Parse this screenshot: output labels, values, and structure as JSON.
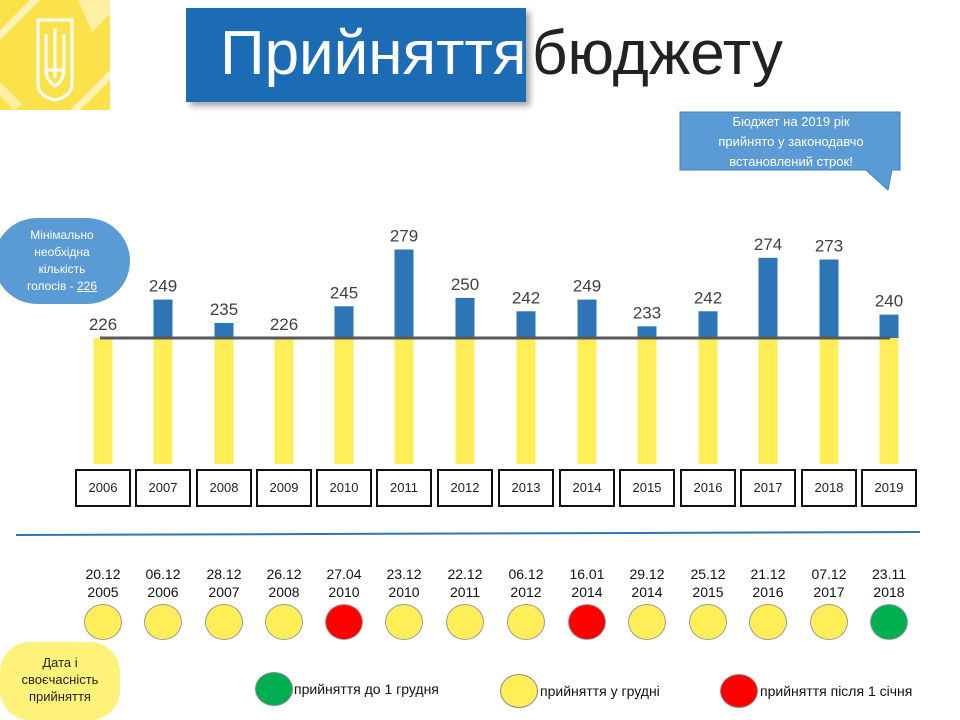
{
  "header": {
    "title_highlight": "Прийняття",
    "title_rest": "бюджету"
  },
  "callout": {
    "lines": [
      "Бюджет на 2019 рік",
      "прийнято у законодавчо",
      "встановлений строк!"
    ]
  },
  "min_votes": {
    "lines": [
      "Мінімально",
      "необхідна",
      "кількість"
    ],
    "last_prefix": "голосів - ",
    "value_label": "226"
  },
  "legend": {
    "bubble_lines": [
      "Дата і",
      "своєчасність",
      "прийняття"
    ],
    "items": [
      {
        "label": "прийняття до 1 грудня",
        "color": "#00b050"
      },
      {
        "label": "прийняття у грудні",
        "color": "#ffee58"
      },
      {
        "label": "прийняття після 1 січня",
        "color": "#ff0000"
      }
    ]
  },
  "colors": {
    "bar_blue": "#2e75b6",
    "bar_yellow": "#ffee58",
    "threshold_line": "#595959",
    "separator": "#2e75b6"
  },
  "chart_data": {
    "type": "bar",
    "categories": [
      "2006",
      "2007",
      "2008",
      "2009",
      "2010",
      "2011",
      "2012",
      "2013",
      "2014",
      "2015",
      "2016",
      "2017",
      "2018",
      "2019"
    ],
    "values": [
      226,
      249,
      235,
      226,
      245,
      279,
      250,
      242,
      249,
      233,
      242,
      274,
      273,
      240
    ],
    "value_labels": [
      "226",
      "249",
      "235",
      "226",
      "245",
      "279",
      "250",
      "242",
      "249",
      "233",
      "242",
      "274",
      "273",
      "240"
    ],
    "threshold": 226,
    "adoption_dates": [
      {
        "day": "20.12",
        "year": "2005",
        "status": "december"
      },
      {
        "day": "06.12",
        "year": "2006",
        "status": "december"
      },
      {
        "day": "28.12",
        "year": "2007",
        "status": "december"
      },
      {
        "day": "26.12",
        "year": "2008",
        "status": "december"
      },
      {
        "day": "27.04",
        "year": "2010",
        "status": "after_jan1"
      },
      {
        "day": "23.12",
        "year": "2010",
        "status": "december"
      },
      {
        "day": "22.12",
        "year": "2011",
        "status": "december"
      },
      {
        "day": "06.12",
        "year": "2012",
        "status": "december"
      },
      {
        "day": "16.01",
        "year": "2014",
        "status": "after_jan1"
      },
      {
        "day": "29.12",
        "year": "2014",
        "status": "december"
      },
      {
        "day": "25.12",
        "year": "2015",
        "status": "december"
      },
      {
        "day": "21.12",
        "year": "2016",
        "status": "december"
      },
      {
        "day": "07.12",
        "year": "2017",
        "status": "december"
      },
      {
        "day": "23.11",
        "year": "2018",
        "status": "before_dec1"
      }
    ],
    "status_colors": {
      "before_dec1": "#00b050",
      "december": "#ffee58",
      "after_jan1": "#ff0000"
    }
  }
}
